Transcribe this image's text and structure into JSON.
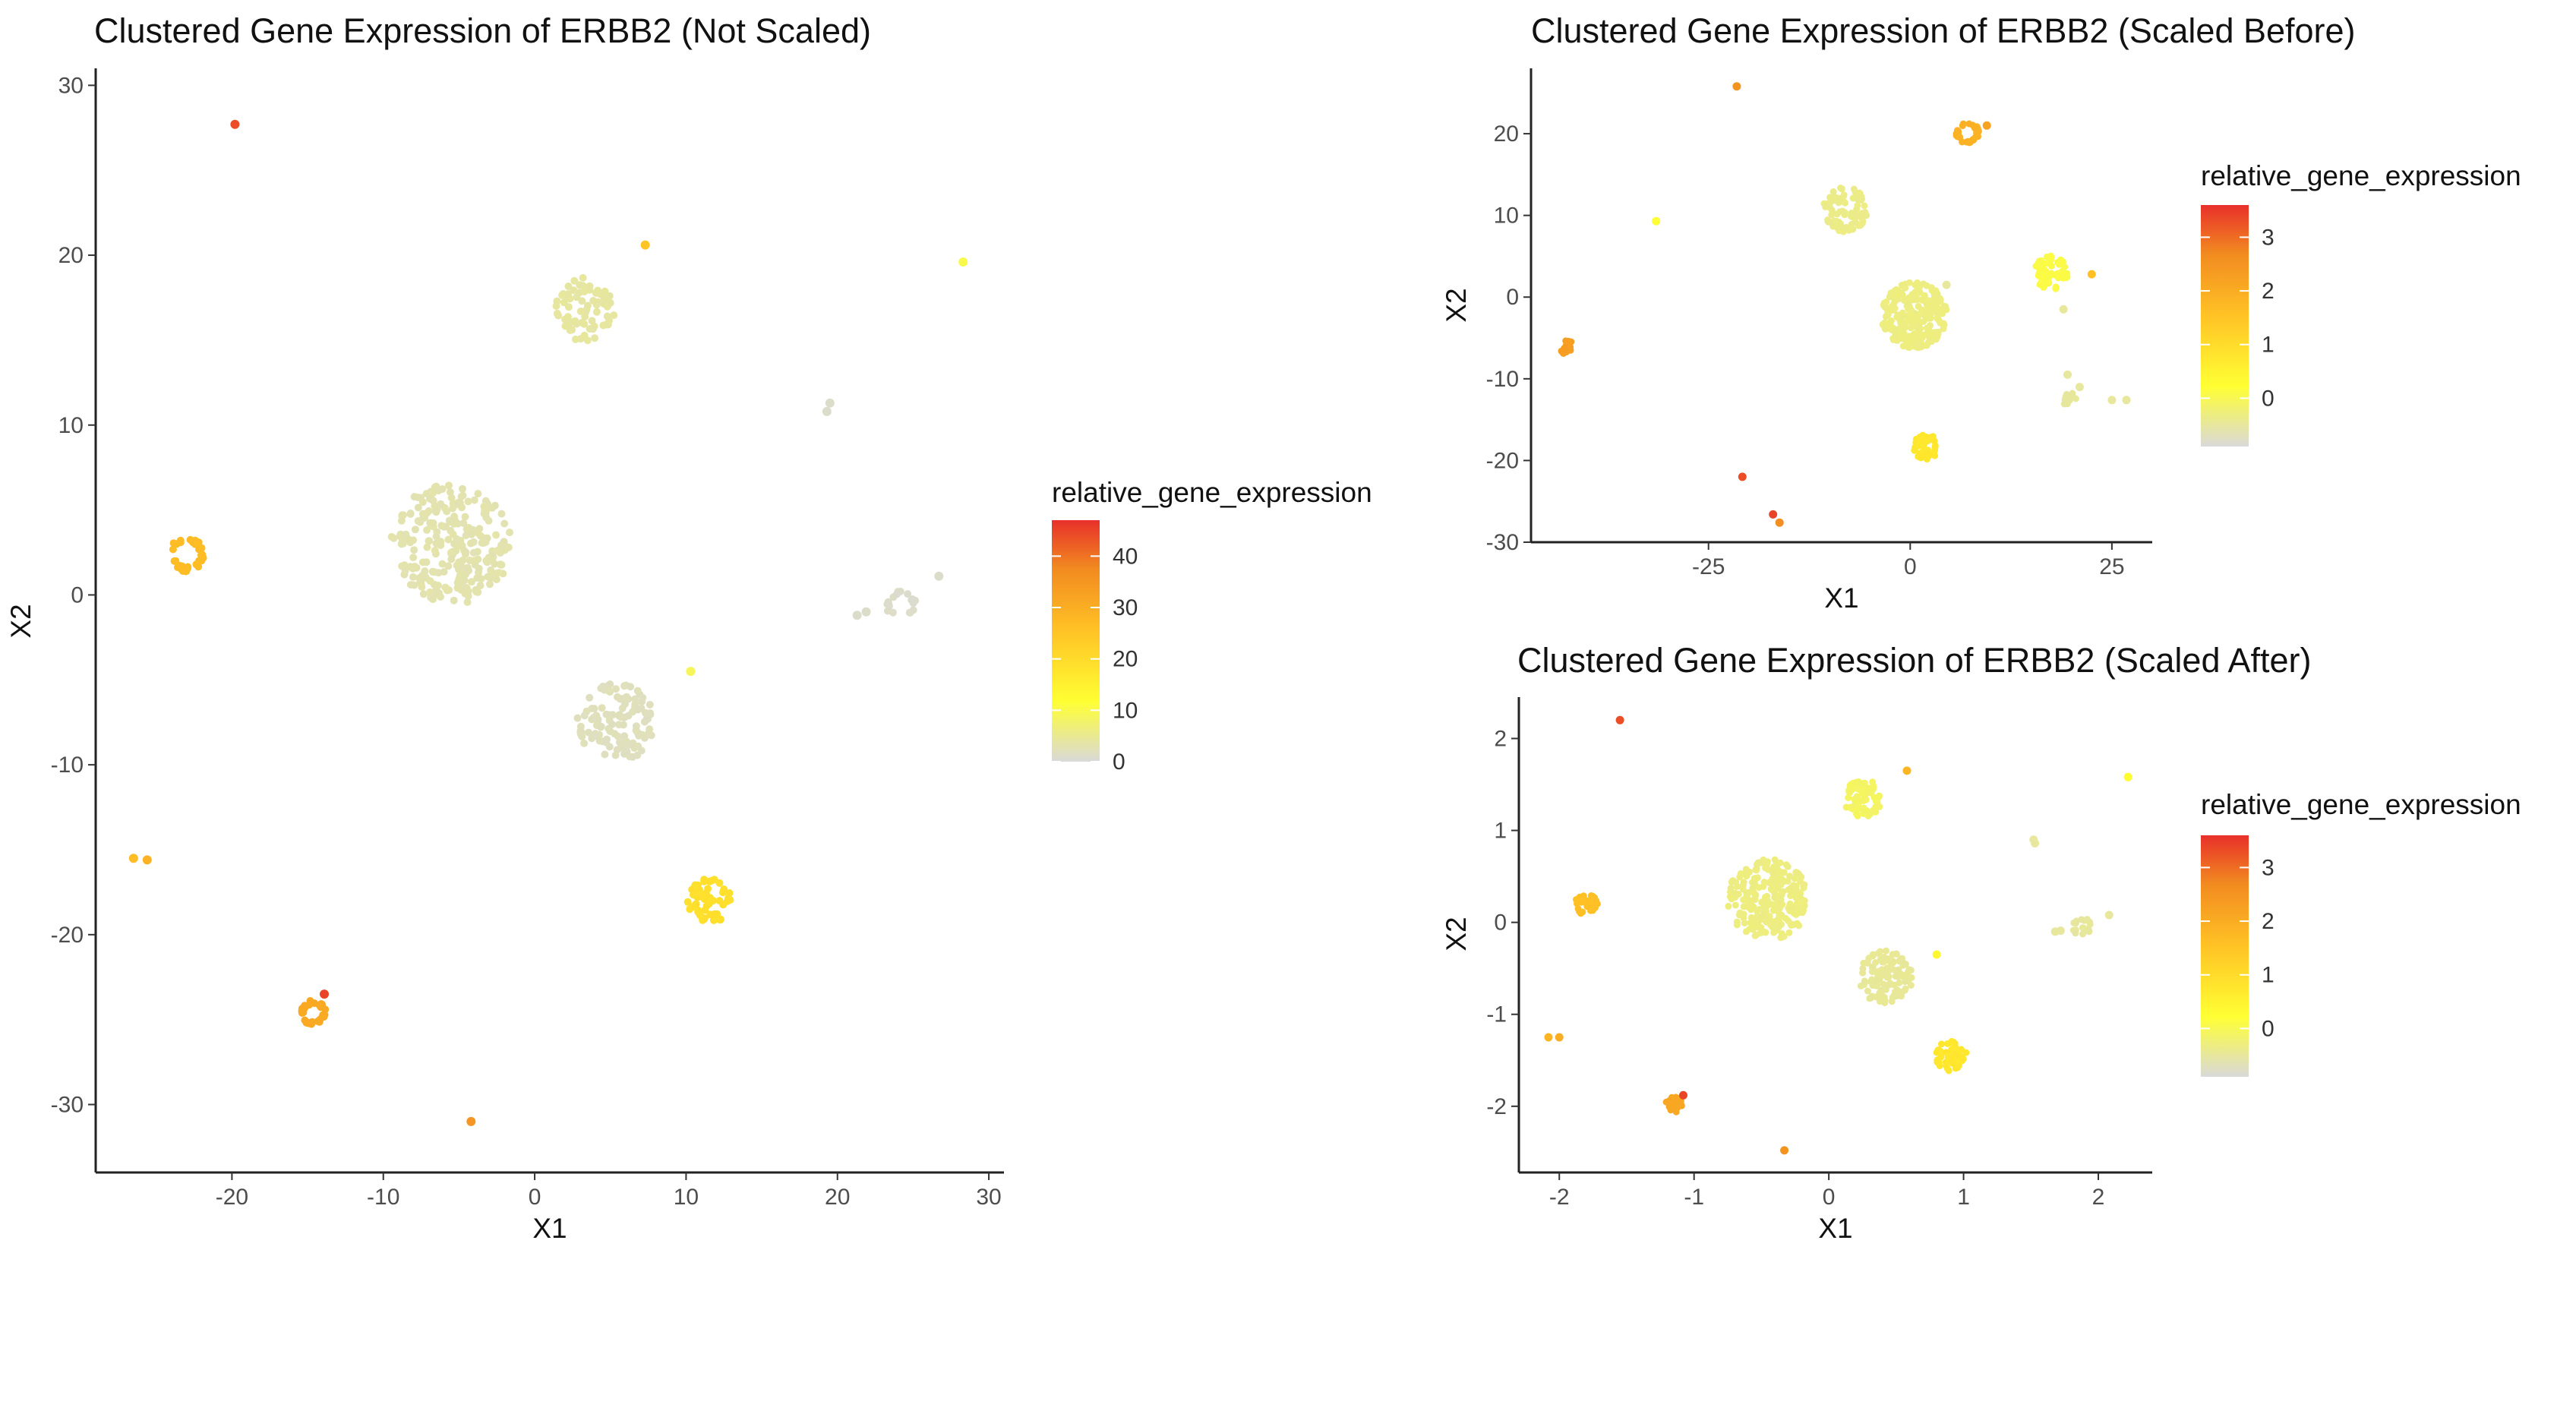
{
  "colors": {
    "low": "#d9d9d9",
    "mid": "#ffff33",
    "high": "#e8302a",
    "stops": [
      "#d9d9d9",
      "#ffff33",
      "#ffc125",
      "#f18a20",
      "#e8302a"
    ]
  },
  "chart_data": [
    {
      "type": "scatter",
      "title": "Clustered Gene Expression of ERBB2 (Not Scaled)",
      "xlabel": "X1",
      "ylabel": "X2",
      "xlim": [
        -29,
        31
      ],
      "ylim": [
        -34,
        31
      ],
      "xticks": [
        -20,
        -10,
        0,
        10,
        20,
        30
      ],
      "yticks": [
        -30,
        -20,
        -10,
        0,
        10,
        20,
        30
      ],
      "grid": false,
      "legend": {
        "title": "relative_gene_expression",
        "position": "right",
        "range": [
          0,
          47
        ],
        "ticks": [
          0,
          10,
          20,
          30,
          40
        ]
      },
      "clusters": [
        {
          "x": -5.5,
          "y": 3,
          "r": 4,
          "n": 260,
          "value": 3,
          "pattern": "disk"
        },
        {
          "x": 3.2,
          "y": 16.8,
          "r": 2.1,
          "n": 70,
          "value": 4,
          "pattern": "disk"
        },
        {
          "x": 5.4,
          "y": -7.5,
          "r": 2.6,
          "n": 120,
          "value": 2,
          "pattern": "disk"
        },
        {
          "x": 11.6,
          "y": -18,
          "r": 1.5,
          "n": 55,
          "value": 19,
          "pattern": "disk"
        },
        {
          "x": -23,
          "y": 2.4,
          "r": 1.05,
          "n": 40,
          "value": 27,
          "pattern": "ring"
        },
        {
          "x": -14.6,
          "y": -24.6,
          "r": 0.75,
          "n": 30,
          "value": 31,
          "pattern": "ring"
        },
        {
          "x": 24.2,
          "y": -0.6,
          "r": 0.9,
          "n": 18,
          "value": 1,
          "pattern": "ring"
        }
      ],
      "points": [
        {
          "x": -19.8,
          "y": 27.7,
          "value": 44
        },
        {
          "x": 7.3,
          "y": 20.6,
          "value": 25
        },
        {
          "x": 28.3,
          "y": 19.6,
          "value": 10
        },
        {
          "x": 19.5,
          "y": 11.3,
          "value": 1
        },
        {
          "x": 19.3,
          "y": 10.8,
          "value": 1
        },
        {
          "x": 26.7,
          "y": 1.1,
          "value": 1
        },
        {
          "x": 21.3,
          "y": -1.2,
          "value": 1
        },
        {
          "x": 21.9,
          "y": -1,
          "value": 1
        },
        {
          "x": 10.3,
          "y": -4.5,
          "value": 9
        },
        {
          "x": -26.5,
          "y": -15.5,
          "value": 27
        },
        {
          "x": -25.6,
          "y": -15.6,
          "value": 29
        },
        {
          "x": -13.9,
          "y": -23.5,
          "value": 45
        },
        {
          "x": -4.2,
          "y": -31,
          "value": 35
        }
      ]
    },
    {
      "type": "scatter",
      "title": "Clustered Gene Expression of ERBB2 (Scaled Before)",
      "xlabel": "X1",
      "ylabel": "X2",
      "xlim": [
        -47,
        30
      ],
      "ylim": [
        -30,
        28
      ],
      "xticks": [
        -25,
        0,
        25
      ],
      "yticks": [
        -30,
        -20,
        -10,
        0,
        10,
        20
      ],
      "grid": false,
      "legend": {
        "title": "relative_gene_expression",
        "position": "right",
        "range": [
          -0.9,
          3.6
        ],
        "ticks": [
          0,
          1,
          2,
          3
        ]
      },
      "clusters": [
        {
          "x": 0.5,
          "y": -2.2,
          "r": 4.1,
          "n": 230,
          "value": -0.3,
          "pattern": "disk"
        },
        {
          "x": -8,
          "y": 10.7,
          "r": 2.8,
          "n": 80,
          "value": -0.35,
          "pattern": "disk"
        },
        {
          "x": 17.5,
          "y": 3,
          "r": 2.1,
          "n": 55,
          "value": 0.1,
          "pattern": "disk"
        },
        {
          "x": 2,
          "y": -18.3,
          "r": 1.6,
          "n": 45,
          "value": 0.75,
          "pattern": "disk"
        },
        {
          "x": 7.1,
          "y": 20.1,
          "r": 1.3,
          "n": 35,
          "value": 1.9,
          "pattern": "ring"
        },
        {
          "x": -42.5,
          "y": -6.2,
          "r": 0.9,
          "n": 18,
          "value": 2.3,
          "pattern": "disk"
        },
        {
          "x": 19.8,
          "y": -12.6,
          "r": 0.9,
          "n": 16,
          "value": -0.5,
          "pattern": "disk"
        }
      ],
      "points": [
        {
          "x": -21.5,
          "y": 25.8,
          "value": 2.5
        },
        {
          "x": 9.5,
          "y": 21,
          "value": 2.2
        },
        {
          "x": -31.5,
          "y": 9.3,
          "value": 0.2
        },
        {
          "x": 22.5,
          "y": 2.8,
          "value": 1.6
        },
        {
          "x": 4.5,
          "y": 1.5,
          "value": -0.5
        },
        {
          "x": 19,
          "y": -1.5,
          "value": -0.5
        },
        {
          "x": 19.5,
          "y": -9.5,
          "value": -0.5
        },
        {
          "x": 21,
          "y": -11,
          "value": -0.5
        },
        {
          "x": 25,
          "y": -12.6,
          "value": -0.5
        },
        {
          "x": 26.8,
          "y": -12.6,
          "value": -0.5
        },
        {
          "x": -20.8,
          "y": -22,
          "value": 3.3
        },
        {
          "x": -17,
          "y": -26.6,
          "value": 3.4
        },
        {
          "x": -16.2,
          "y": -27.6,
          "value": 2.6
        }
      ]
    },
    {
      "type": "scatter",
      "title": "Clustered Gene Expression of ERBB2 (Scaled After)",
      "xlabel": "X1",
      "ylabel": "X2",
      "xlim": [
        -2.3,
        2.4
      ],
      "ylim": [
        -2.72,
        2.45
      ],
      "xticks": [
        -2,
        -1,
        0,
        1,
        2
      ],
      "yticks": [
        -2,
        -1,
        0,
        1,
        2
      ],
      "grid": false,
      "legend": {
        "title": "relative_gene_expression",
        "position": "right",
        "range": [
          -0.9,
          3.6
        ],
        "ticks": [
          0,
          1,
          2,
          3
        ]
      },
      "clusters": [
        {
          "x": -0.45,
          "y": 0.25,
          "r": 0.3,
          "n": 240,
          "value": -0.3,
          "pattern": "disk"
        },
        {
          "x": 0.25,
          "y": 1.36,
          "r": 0.15,
          "n": 70,
          "value": -0.1,
          "pattern": "disk"
        },
        {
          "x": 0.42,
          "y": -0.6,
          "r": 0.2,
          "n": 110,
          "value": -0.45,
          "pattern": "disk"
        },
        {
          "x": 0.91,
          "y": -1.45,
          "r": 0.12,
          "n": 55,
          "value": 0.75,
          "pattern": "disk"
        },
        {
          "x": -1.8,
          "y": 0.2,
          "r": 0.085,
          "n": 40,
          "value": 1.6,
          "pattern": "disk"
        },
        {
          "x": -1.15,
          "y": -1.98,
          "r": 0.06,
          "n": 30,
          "value": 2.1,
          "pattern": "disk"
        },
        {
          "x": 1.88,
          "y": -0.05,
          "r": 0.07,
          "n": 18,
          "value": -0.5,
          "pattern": "disk"
        }
      ],
      "points": [
        {
          "x": -1.55,
          "y": 2.2,
          "value": 3.3
        },
        {
          "x": 0.58,
          "y": 1.65,
          "value": 1.8
        },
        {
          "x": 2.22,
          "y": 1.58,
          "value": 0.3
        },
        {
          "x": 1.52,
          "y": 0.9,
          "value": -0.5
        },
        {
          "x": 1.53,
          "y": 0.86,
          "value": -0.5
        },
        {
          "x": 2.08,
          "y": 0.08,
          "value": -0.5
        },
        {
          "x": 1.68,
          "y": -0.1,
          "value": -0.5
        },
        {
          "x": 1.72,
          "y": -0.09,
          "value": -0.5
        },
        {
          "x": 0.8,
          "y": -0.35,
          "value": 0.4
        },
        {
          "x": -2.08,
          "y": -1.25,
          "value": 1.8
        },
        {
          "x": -2,
          "y": -1.25,
          "value": 2
        },
        {
          "x": -1.08,
          "y": -1.88,
          "value": 3.4
        },
        {
          "x": -0.33,
          "y": -2.48,
          "value": 2.5
        }
      ]
    }
  ]
}
